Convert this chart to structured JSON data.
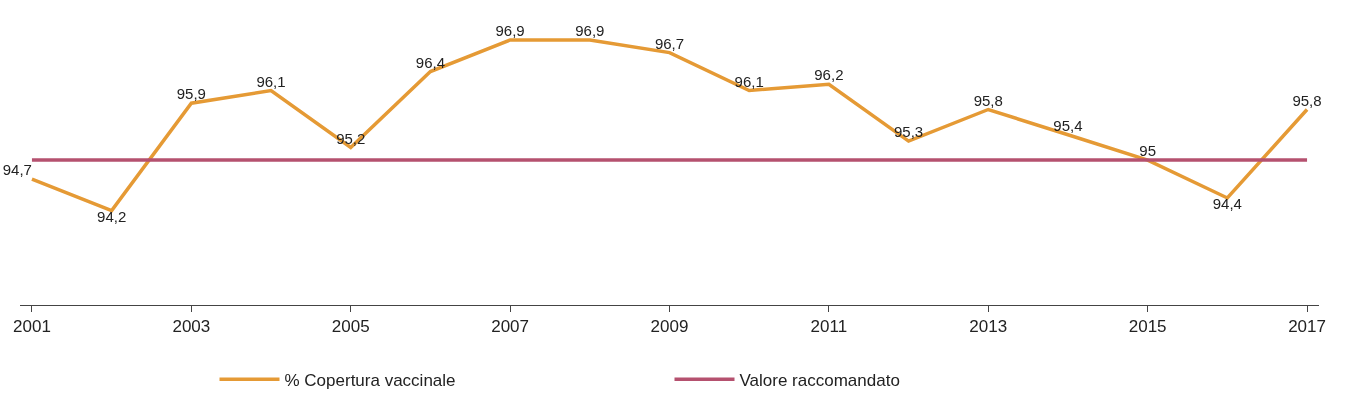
{
  "chart_data": {
    "type": "line",
    "x": [
      2001,
      2002,
      2003,
      2004,
      2005,
      2006,
      2007,
      2008,
      2009,
      2010,
      2011,
      2012,
      2013,
      2014,
      2015,
      2016,
      2017
    ],
    "series": [
      {
        "name": "% Copertura vaccinale",
        "color": "#e59a35",
        "values": [
          94.7,
          94.2,
          95.9,
          96.1,
          95.2,
          96.4,
          96.9,
          96.9,
          96.7,
          96.1,
          96.2,
          95.3,
          95.8,
          95.4,
          95,
          94.4,
          95.8
        ],
        "value_labels": [
          "94,7",
          "94,2",
          "95,9",
          "96,1",
          "95,2",
          "96,4",
          "96,9",
          "96,9",
          "96,7",
          "96,1",
          "96,2",
          "95,3",
          "95,8",
          "95,4",
          "95",
          "94,4",
          "95,8"
        ]
      },
      {
        "name": "Valore raccomandato",
        "color": "#b5516f",
        "values": [
          95,
          95,
          95,
          95,
          95,
          95,
          95,
          95,
          95,
          95,
          95,
          95,
          95,
          95,
          95,
          95,
          95
        ]
      }
    ],
    "xlim": [
      2000.85,
      2017.15
    ],
    "xticks": [
      2001,
      2003,
      2005,
      2007,
      2009,
      2011,
      2013,
      2015,
      2017
    ],
    "tick_labels": "x",
    "grid": false,
    "legend": "bottom",
    "marker": "none",
    "line_style": "solid"
  }
}
